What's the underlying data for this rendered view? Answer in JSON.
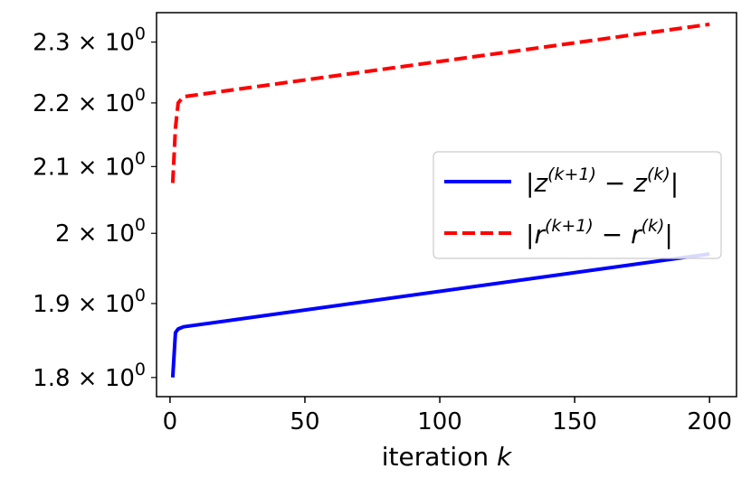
{
  "chart_data": {
    "type": "line",
    "xlabel": "iteration k",
    "ylabel": "",
    "y_scale": "log",
    "xlim": [
      -5,
      210
    ],
    "ylim": [
      1.775,
      2.35
    ],
    "x_ticks": [
      0,
      50,
      100,
      150,
      200
    ],
    "x_tick_labels": [
      "0",
      "50",
      "100",
      "150",
      "200"
    ],
    "y_ticks": [
      1.8,
      1.9,
      2.0,
      2.1,
      2.2,
      2.3
    ],
    "y_tick_labels": [
      "1.8 × 10⁰",
      "1.9 × 10⁰",
      "2 × 10⁰",
      "2.1 × 10⁰",
      "2.2 × 10⁰",
      "2.3 × 10⁰"
    ],
    "grid": false,
    "legend_position": "center-right",
    "series": [
      {
        "name": "|z^(k+1) − z^(k)|",
        "color": "#0000ff",
        "style": "solid",
        "x": [
          1,
          2,
          3,
          5,
          200
        ],
        "y": [
          1.8,
          1.86,
          1.865,
          1.868,
          1.97
        ]
      },
      {
        "name": "|r^(k+1) − r^(k)|",
        "color": "#ff0000",
        "style": "dashed",
        "x": [
          1,
          2,
          3,
          5,
          200
        ],
        "y": [
          2.075,
          2.16,
          2.2,
          2.21,
          2.33
        ]
      }
    ]
  }
}
